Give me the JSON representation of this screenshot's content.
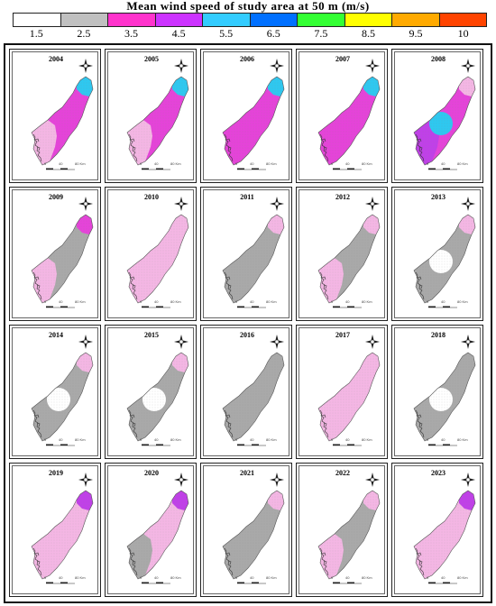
{
  "legend": {
    "title": "Mean wind speed of study area at 50 m (m/s)",
    "ticks": [
      "1.5",
      "2.5",
      "3.5",
      "4.5",
      "5.5",
      "6.5",
      "7.5",
      "8.5",
      "9.5",
      "10"
    ],
    "colors": [
      "#ffffff",
      "#c0c0c0",
      "#ff33cc",
      "#cc33ff",
      "#33ccff",
      "#0070ff",
      "#33ff33",
      "#ffff00",
      "#ffaa00",
      "#ff4400"
    ]
  },
  "map_colors": {
    "light_pink": "#f4b6e4",
    "gray": "#a9a9a9",
    "magenta": "#e543d9",
    "purple": "#c040e8",
    "cyan": "#2ec8f0",
    "white": "#ffffff"
  },
  "scale_labels": [
    "0",
    "40",
    "80 Km"
  ],
  "panels": [
    {
      "year": "2004",
      "base": "magenta",
      "south": "light_pink",
      "northeast": "cyan",
      "blob": null
    },
    {
      "year": "2005",
      "base": "magenta",
      "south": "light_pink",
      "northeast": "cyan",
      "blob": null
    },
    {
      "year": "2006",
      "base": "magenta",
      "south": "magenta",
      "northeast": "cyan",
      "blob": null
    },
    {
      "year": "2007",
      "base": "magenta",
      "south": "magenta",
      "northeast": "cyan",
      "blob": null
    },
    {
      "year": "2008",
      "base": "magenta",
      "south": "purple",
      "northeast": "light_pink",
      "blob": "cyan"
    },
    {
      "year": "2009",
      "base": "gray",
      "south": "light_pink",
      "northeast": "magenta",
      "blob": null
    },
    {
      "year": "2010",
      "base": "light_pink",
      "south": "light_pink",
      "northeast": "light_pink",
      "blob": null
    },
    {
      "year": "2011",
      "base": "gray",
      "south": "gray",
      "northeast": "light_pink",
      "blob": null
    },
    {
      "year": "2012",
      "base": "gray",
      "south": "light_pink",
      "northeast": "light_pink",
      "blob": null
    },
    {
      "year": "2013",
      "base": "gray",
      "south": "gray",
      "northeast": "light_pink",
      "blob": "white"
    },
    {
      "year": "2014",
      "base": "gray",
      "south": "gray",
      "northeast": "light_pink",
      "blob": "white"
    },
    {
      "year": "2015",
      "base": "gray",
      "south": "gray",
      "northeast": "light_pink",
      "blob": "white"
    },
    {
      "year": "2016",
      "base": "gray",
      "south": "gray",
      "northeast": "gray",
      "blob": null
    },
    {
      "year": "2017",
      "base": "light_pink",
      "south": "light_pink",
      "northeast": "light_pink",
      "blob": null
    },
    {
      "year": "2018",
      "base": "gray",
      "south": "gray",
      "northeast": "gray",
      "blob": "white"
    },
    {
      "year": "2019",
      "base": "light_pink",
      "south": "light_pink",
      "northeast": "purple",
      "blob": null
    },
    {
      "year": "2020",
      "base": "light_pink",
      "south": "gray",
      "northeast": "purple",
      "blob": null
    },
    {
      "year": "2021",
      "base": "gray",
      "south": "gray",
      "northeast": "light_pink",
      "blob": null
    },
    {
      "year": "2022",
      "base": "gray",
      "south": "light_pink",
      "northeast": "light_pink",
      "blob": null
    },
    {
      "year": "2023",
      "base": "light_pink",
      "south": "light_pink",
      "northeast": "purple",
      "blob": null
    }
  ]
}
